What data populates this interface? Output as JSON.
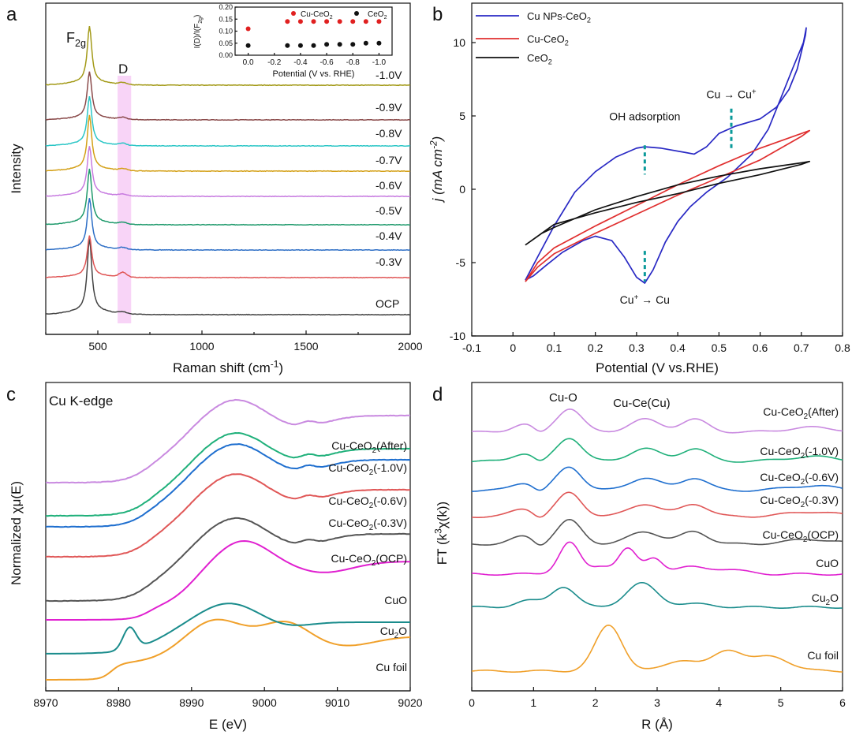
{
  "chart_data": [
    {
      "panel": "a",
      "type": "line",
      "xlabel": "Raman shift (cm⁻¹)",
      "ylabel": "Intensity",
      "xlim": [
        250,
        2000
      ],
      "xticks": [
        500,
        1000,
        1500,
        2000
      ],
      "annotations": [
        "F2g",
        "D"
      ],
      "peak_position": 460,
      "d_band_range": [
        595,
        660
      ],
      "series": [
        {
          "label": "OCP",
          "color": "#444444",
          "peak": 1.0,
          "dband": 0.012
        },
        {
          "label": "-0.3V",
          "color": "#e05757",
          "peak": 0.55,
          "dband": 0.03
        },
        {
          "label": "-0.4V",
          "color": "#2e6fc6",
          "peak": 0.68,
          "dband": 0.012
        },
        {
          "label": "-0.5V",
          "color": "#1f9a6c",
          "peak": 0.73,
          "dband": 0.012
        },
        {
          "label": "-0.6V",
          "color": "#c77be0",
          "peak": 0.66,
          "dband": 0.01
        },
        {
          "label": "-0.7V",
          "color": "#d4a017",
          "peak": 0.73,
          "dband": 0.012
        },
        {
          "label": "-0.8V",
          "color": "#2bc6c6",
          "peak": 0.65,
          "dband": 0.012
        },
        {
          "label": "-0.9V",
          "color": "#8a4a4a",
          "peak": 0.63,
          "dband": 0.012
        },
        {
          "label": "-1.0V",
          "color": "#a39a18",
          "peak": 0.77,
          "dband": 0.012
        }
      ],
      "inset": {
        "type": "scatter",
        "xlabel": "Potential (V vs. RHE)",
        "ylabel": "I(D)/I(F2g)",
        "xlim": [
          0.1,
          -1.1
        ],
        "ylim": [
          0.0,
          0.2
        ],
        "xticks": [
          "0.0",
          "-0.2",
          "-0.4",
          "-0.6",
          "-0.8",
          "-1.0"
        ],
        "yticks": [
          "0.00",
          "0.05",
          "0.10",
          "0.15",
          "0.20"
        ],
        "series": [
          {
            "name": "Cu-CeO2",
            "color": "#e02020",
            "points": [
              [
                0.0,
                0.11
              ],
              [
                -0.3,
                0.14
              ],
              [
                -0.4,
                0.14
              ],
              [
                -0.5,
                0.14
              ],
              [
                -0.6,
                0.14
              ],
              [
                -0.7,
                0.14
              ],
              [
                -0.8,
                0.14
              ],
              [
                -0.9,
                0.14
              ],
              [
                -1.0,
                0.14
              ]
            ]
          },
          {
            "name": "CeO2",
            "color": "#111111",
            "points": [
              [
                0.0,
                0.04
              ],
              [
                -0.3,
                0.04
              ],
              [
                -0.4,
                0.04
              ],
              [
                -0.5,
                0.04
              ],
              [
                -0.6,
                0.045
              ],
              [
                -0.7,
                0.045
              ],
              [
                -0.8,
                0.045
              ],
              [
                -0.9,
                0.05
              ],
              [
                -1.0,
                0.05
              ]
            ]
          }
        ]
      }
    },
    {
      "panel": "b",
      "type": "line",
      "xlabel": "Potential (V vs.RHE)",
      "ylabel": "j (mA cm⁻²)",
      "xlim": [
        -0.1,
        0.8
      ],
      "ylim": [
        -10,
        12
      ],
      "xticks": [
        -0.1,
        0.0,
        0.1,
        0.2,
        0.3,
        0.4,
        0.5,
        0.6,
        0.7,
        0.8
      ],
      "yticks": [
        -10,
        -5,
        0,
        5,
        10
      ],
      "legend_position": "top-left",
      "series": [
        {
          "name": "Cu NPs-CeO2",
          "color": "#2929c4",
          "points": [
            [
              0.03,
              -6.2
            ],
            [
              0.06,
              -4.6
            ],
            [
              0.1,
              -2.5
            ],
            [
              0.15,
              -0.2
            ],
            [
              0.2,
              1.2
            ],
            [
              0.25,
              2.2
            ],
            [
              0.3,
              2.8
            ],
            [
              0.32,
              2.9
            ],
            [
              0.36,
              2.8
            ],
            [
              0.42,
              2.5
            ],
            [
              0.44,
              2.4
            ],
            [
              0.47,
              2.9
            ],
            [
              0.5,
              3.8
            ],
            [
              0.54,
              4.3
            ],
            [
              0.6,
              4.8
            ],
            [
              0.64,
              5.6
            ],
            [
              0.67,
              6.8
            ],
            [
              0.69,
              8.2
            ],
            [
              0.71,
              10.5
            ],
            [
              0.712,
              11.0
            ],
            [
              0.705,
              10.0
            ],
            [
              0.68,
              8.3
            ],
            [
              0.65,
              6.2
            ],
            [
              0.62,
              4.1
            ],
            [
              0.58,
              2.4
            ],
            [
              0.52,
              0.8
            ],
            [
              0.47,
              -0.2
            ],
            [
              0.43,
              -1.2
            ],
            [
              0.4,
              -2.2
            ],
            [
              0.37,
              -3.6
            ],
            [
              0.34,
              -5.5
            ],
            [
              0.32,
              -6.4
            ],
            [
              0.3,
              -6.0
            ],
            [
              0.27,
              -4.6
            ],
            [
              0.24,
              -3.5
            ],
            [
              0.2,
              -3.2
            ],
            [
              0.17,
              -3.5
            ],
            [
              0.12,
              -4.3
            ],
            [
              0.08,
              -5.2
            ],
            [
              0.05,
              -5.9
            ],
            [
              0.03,
              -6.2
            ]
          ]
        },
        {
          "name": "Cu-CeO2",
          "color": "#e02f2f",
          "points": [
            [
              0.03,
              -6.3
            ],
            [
              0.06,
              -5.0
            ],
            [
              0.1,
              -4.0
            ],
            [
              0.2,
              -2.5
            ],
            [
              0.3,
              -1.1
            ],
            [
              0.4,
              0.3
            ],
            [
              0.5,
              1.6
            ],
            [
              0.6,
              2.8
            ],
            [
              0.7,
              3.8
            ],
            [
              0.72,
              4.0
            ],
            [
              0.7,
              3.6
            ],
            [
              0.6,
              2.0
            ],
            [
              0.5,
              0.8
            ],
            [
              0.4,
              -0.4
            ],
            [
              0.3,
              -1.7
            ],
            [
              0.2,
              -3.0
            ],
            [
              0.1,
              -4.4
            ],
            [
              0.06,
              -5.3
            ],
            [
              0.03,
              -6.3
            ]
          ]
        },
        {
          "name": "CeO2",
          "color": "#111111",
          "points": [
            [
              0.03,
              -3.8
            ],
            [
              0.07,
              -3.0
            ],
            [
              0.1,
              -2.6
            ],
            [
              0.2,
              -1.4
            ],
            [
              0.3,
              -0.5
            ],
            [
              0.4,
              0.3
            ],
            [
              0.5,
              0.9
            ],
            [
              0.6,
              1.4
            ],
            [
              0.7,
              1.8
            ],
            [
              0.72,
              1.9
            ],
            [
              0.7,
              1.7
            ],
            [
              0.6,
              1.0
            ],
            [
              0.5,
              0.4
            ],
            [
              0.4,
              -0.3
            ],
            [
              0.3,
              -0.9
            ],
            [
              0.2,
              -1.6
            ],
            [
              0.1,
              -2.4
            ],
            [
              0.06,
              -3.2
            ],
            [
              0.03,
              -3.8
            ]
          ]
        }
      ],
      "annotations": [
        {
          "text": "OH adsorption",
          "x": 0.32,
          "y": 2.8
        },
        {
          "text": "Cu → Cu⁺",
          "x": 0.53,
          "y": 4.5
        },
        {
          "text": "Cu⁺ → Cu",
          "x": 0.32,
          "y": -6.4
        }
      ]
    },
    {
      "panel": "c",
      "type": "line",
      "title": "Cu K-edge",
      "xlabel": "E (eV)",
      "ylabel": "Normalized χμ(E)",
      "xlim": [
        8970,
        9020
      ],
      "xticks": [
        8970,
        8980,
        8990,
        9000,
        9010,
        9020
      ],
      "series": [
        {
          "label": "Cu foil",
          "color": "#f0a02a"
        },
        {
          "label": "Cu2O",
          "color": "#1a8c8c"
        },
        {
          "label": "CuO",
          "color": "#e020d0"
        },
        {
          "label": "Cu-CeO2(OCP)",
          "color": "#555555"
        },
        {
          "label": "Cu-CeO2(-0.3V)",
          "color": "#e05757"
        },
        {
          "label": "Cu-CeO2(-0.6V)",
          "color": "#1f6fcf"
        },
        {
          "label": "Cu-CeO2(-1.0V)",
          "color": "#1fb07a"
        },
        {
          "label": "Cu-CeO2(After)",
          "color": "#c98ae0"
        }
      ]
    },
    {
      "panel": "d",
      "type": "line",
      "xlabel": "R (Å)",
      "ylabel": "FT (k³χ(k))",
      "xlim": [
        0,
        6
      ],
      "xticks": [
        0,
        1,
        2,
        3,
        4,
        5,
        6
      ],
      "annotations": [
        "Cu-O",
        "Cu-Ce(Cu)"
      ],
      "series": [
        {
          "label": "Cu foil",
          "color": "#f0a02a"
        },
        {
          "label": "Cu2O",
          "color": "#1a8c8c"
        },
        {
          "label": "CuO",
          "color": "#e020d0"
        },
        {
          "label": "Cu-CeO2(OCP)",
          "color": "#555555"
        },
        {
          "label": "Cu-CeO2(-0.3V)",
          "color": "#e05757"
        },
        {
          "label": "Cu-CeO2(-0.6V)",
          "color": "#1f6fcf"
        },
        {
          "label": "Cu-CeO2(-1.0V)",
          "color": "#1fb07a"
        },
        {
          "label": "Cu-CeO2(After)",
          "color": "#c98ae0"
        }
      ]
    }
  ],
  "panel_letters": [
    "a",
    "b",
    "c",
    "d"
  ]
}
